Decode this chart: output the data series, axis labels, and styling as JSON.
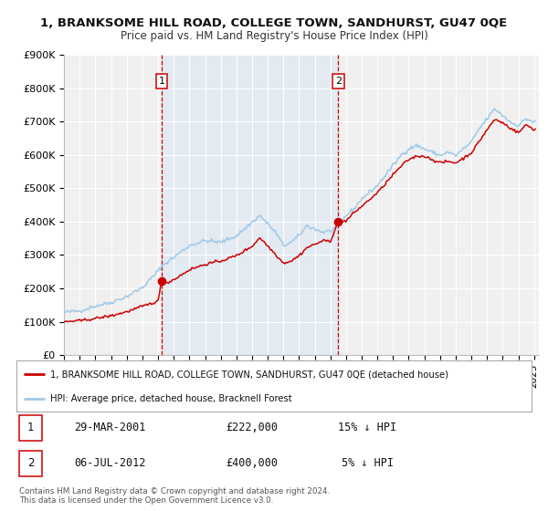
{
  "title": "1, BRANKSOME HILL ROAD, COLLEGE TOWN, SANDHURST, GU47 0QE",
  "subtitle": "Price paid vs. HM Land Registry's House Price Index (HPI)",
  "ylim": [
    0,
    900000
  ],
  "yticks": [
    0,
    100000,
    200000,
    300000,
    400000,
    500000,
    600000,
    700000,
    800000,
    900000
  ],
  "ytick_labels": [
    "£0",
    "£100K",
    "£200K",
    "£300K",
    "£400K",
    "£500K",
    "£600K",
    "£700K",
    "£800K",
    "£900K"
  ],
  "xlim_start": 1995.0,
  "xlim_end": 2025.3,
  "sale1_date": 2001.23,
  "sale1_price": 222000,
  "sale1_label": "1",
  "sale2_date": 2012.51,
  "sale2_price": 400000,
  "sale2_label": "2",
  "hpi_color": "#9ec8e8",
  "price_color": "#cc0000",
  "shaded_color": "#cce0f5",
  "legend_label1": "1, BRANKSOME HILL ROAD, COLLEGE TOWN, SANDHURST, GU47 0QE (detached house)",
  "legend_label2": "HPI: Average price, detached house, Bracknell Forest",
  "table_row1": [
    "1",
    "29-MAR-2001",
    "£222,000",
    "15% ↓ HPI"
  ],
  "table_row2": [
    "2",
    "06-JUL-2012",
    "£400,000",
    "5% ↓ HPI"
  ],
  "footer1": "Contains HM Land Registry data © Crown copyright and database right 2024.",
  "footer2": "This data is licensed under the Open Government Licence v3.0.",
  "background_color": "#ffffff",
  "plot_bg_color": "#f0f0f0"
}
